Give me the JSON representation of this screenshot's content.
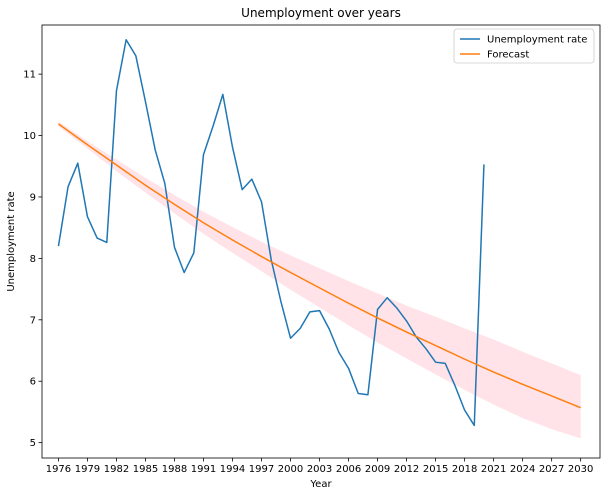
{
  "chart_data": {
    "type": "line",
    "title": "Unemployment over years",
    "xlabel": "Year",
    "ylabel": "Unemployment rate",
    "xlim": [
      1974.3,
      2032.0
    ],
    "ylim": [
      4.75,
      11.8
    ],
    "xticks": [
      1976,
      1979,
      1982,
      1985,
      1988,
      1991,
      1994,
      1997,
      2000,
      2003,
      2006,
      2009,
      2012,
      2015,
      2018,
      2021,
      2024,
      2027,
      2030
    ],
    "yticks": [
      5,
      6,
      7,
      8,
      9,
      10,
      11
    ],
    "grid": false,
    "legend_position": "top-right",
    "series": [
      {
        "name": "Unemployment rate",
        "color": "#1f77b4",
        "x": [
          1976,
          1977,
          1978,
          1979,
          1980,
          1981,
          1982,
          1983,
          1984,
          1985,
          1986,
          1987,
          1988,
          1989,
          1990,
          1991,
          1992,
          1993,
          1994,
          1995,
          1996,
          1997,
          1998,
          1999,
          2000,
          2001,
          2002,
          2003,
          2004,
          2005,
          2006,
          2007,
          2008,
          2009,
          2010,
          2011,
          2012,
          2013,
          2014,
          2015,
          2016,
          2017,
          2018,
          2019,
          2020
        ],
        "y": [
          8.2,
          9.17,
          9.55,
          8.68,
          8.33,
          8.26,
          10.73,
          11.56,
          11.3,
          10.55,
          9.77,
          9.22,
          8.18,
          7.77,
          8.09,
          9.69,
          10.16,
          10.67,
          9.81,
          9.12,
          9.29,
          8.92,
          7.98,
          7.3,
          6.7,
          6.86,
          7.13,
          7.15,
          6.85,
          6.47,
          6.21,
          5.8,
          5.78,
          7.17,
          7.36,
          7.19,
          6.98,
          6.72,
          6.53,
          6.31,
          6.29,
          5.93,
          5.53,
          5.28,
          9.53
        ]
      },
      {
        "name": "Forecast",
        "color": "#ff7f0e",
        "band_color": "#ffc0cb",
        "x": [
          1976,
          1979,
          1982,
          1985,
          1988,
          1991,
          1994,
          1997,
          2000,
          2003,
          2006,
          2009,
          2012,
          2015,
          2018,
          2021,
          2024,
          2027,
          2030
        ],
        "y": [
          10.19,
          9.85,
          9.52,
          9.19,
          8.88,
          8.58,
          8.3,
          8.03,
          7.77,
          7.52,
          7.27,
          7.03,
          6.8,
          6.58,
          6.36,
          6.15,
          5.95,
          5.76,
          5.57
        ],
        "lower": [
          10.15,
          9.79,
          9.42,
          9.07,
          8.73,
          8.4,
          8.09,
          7.79,
          7.49,
          7.2,
          6.91,
          6.63,
          6.37,
          6.11,
          5.86,
          5.62,
          5.4,
          5.22,
          5.07
        ],
        "upper": [
          10.23,
          9.91,
          9.61,
          9.31,
          9.03,
          8.76,
          8.51,
          8.27,
          8.05,
          7.84,
          7.63,
          7.43,
          7.23,
          7.05,
          6.86,
          6.68,
          6.48,
          6.29,
          6.1
        ]
      }
    ]
  }
}
